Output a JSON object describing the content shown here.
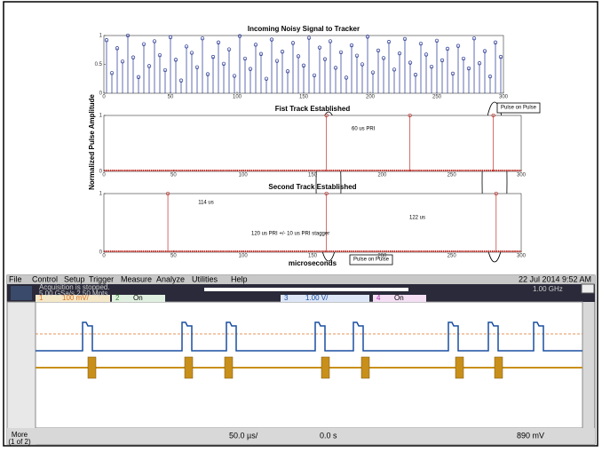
{
  "chart_data": [
    {
      "type": "stem",
      "title": "Incoming Noisy Signal to Tracker",
      "color": "#1f2f8f",
      "x": [
        2,
        6,
        10,
        14,
        18,
        22,
        26,
        30,
        34,
        38,
        42,
        46,
        50,
        54,
        58,
        62,
        66,
        70,
        74,
        78,
        82,
        86,
        90,
        94,
        98,
        102,
        106,
        110,
        114,
        118,
        122,
        126,
        130,
        134,
        138,
        142,
        146,
        150,
        154,
        158,
        162,
        166,
        170,
        174,
        178,
        182,
        186,
        190,
        194,
        198,
        202,
        206,
        210,
        214,
        218,
        222,
        226,
        230,
        234,
        238,
        242,
        246,
        250,
        254,
        258,
        262,
        266,
        270,
        274,
        278,
        282,
        286,
        290,
        294,
        298
      ],
      "values": [
        0.92,
        0.35,
        0.78,
        0.55,
        1,
        0.62,
        0.28,
        0.85,
        0.47,
        0.9,
        0.66,
        0.4,
        0.97,
        0.58,
        0.22,
        0.81,
        0.7,
        0.45,
        0.95,
        0.33,
        0.63,
        0.88,
        0.51,
        0.76,
        0.3,
        0.99,
        0.6,
        0.42,
        0.84,
        0.68,
        0.25,
        0.93,
        0.56,
        0.72,
        0.38,
        0.87,
        0.64,
        0.48,
        0.96,
        0.31,
        0.79,
        0.59,
        0.9,
        0.44,
        0.71,
        0.27,
        0.83,
        0.65,
        0.5,
        0.98,
        0.36,
        0.74,
        0.61,
        0.89,
        0.41,
        0.69,
        0.94,
        0.53,
        0.32,
        0.86,
        0.67,
        0.46,
        0.91,
        0.57,
        0.77,
        0.34,
        0.82,
        0.6,
        0.43,
        0.95,
        0.52,
        0.73,
        0.29,
        0.88,
        0.63
      ],
      "xlim": [
        0,
        300
      ],
      "xticks": [
        0,
        50,
        100,
        150,
        200,
        250,
        300
      ],
      "ylim": [
        0,
        1
      ],
      "yticks": [
        0,
        0.5,
        1
      ]
    },
    {
      "type": "stem",
      "title": "Fist Track Established",
      "ylabel": "Normalized Pulse Amplitude",
      "color": "#c0302a",
      "x": [
        160,
        220,
        280
      ],
      "values": [
        1,
        1,
        1
      ],
      "xlim": [
        0,
        300
      ],
      "xticks": [
        0,
        50,
        100,
        150,
        200,
        250,
        300
      ],
      "ylim": [
        0,
        1
      ],
      "yticks": [
        0,
        1
      ],
      "annotations": [
        "60 us PRI",
        "Pulse on Pulse"
      ]
    },
    {
      "type": "stem",
      "title": "Second Track Established",
      "xlabel": "microseconds",
      "color": "#c0302a",
      "x": [
        46,
        160,
        282
      ],
      "values": [
        1,
        1,
        1
      ],
      "xlim": [
        0,
        300
      ],
      "xticks": [
        0,
        50,
        100,
        150,
        200,
        250,
        300
      ],
      "ylim": [
        0,
        1
      ],
      "yticks": [
        0,
        1
      ],
      "annotations": [
        "114 us",
        "122 us",
        "120 us PRI +/- 10 us PRI stagger",
        "Pulse on Pulse"
      ]
    }
  ],
  "scope": {
    "menu": [
      "File",
      "Control",
      "Setup",
      "Trigger",
      "Measure",
      "Analyze",
      "Utilities",
      "Help"
    ],
    "datetime": "22 Jul 2014  9:52 AM",
    "status": "Acquisition is stopped.",
    "rate": "5.00 GSa/s   2.50 Mpts",
    "bandwidth": "1.00 GHz",
    "ch1": "1",
    "ch1_scale": "100 mV/",
    "ch2": "2",
    "ch2_state": "On",
    "ch3": "3",
    "ch3_scale": "1.00 V/",
    "ch4": "4",
    "ch4_state": "On",
    "timebase": "50.0 µs/",
    "delay": "0.0 s",
    "trigger_level": "890 mV",
    "more": "More\n(1 of 2)"
  }
}
